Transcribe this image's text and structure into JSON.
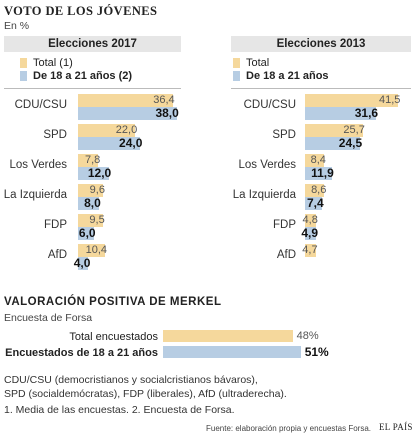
{
  "header": {
    "title": "VOTO DE LOS JÓVENES",
    "unit": "En %"
  },
  "colors": {
    "total": "#f5d89c",
    "young": "#b7cde3"
  },
  "chart_data": [
    {
      "type": "bar",
      "title": "Elecciones 2017",
      "legend": {
        "total": "Total (1)",
        "young": "De 18 a 21 años (2)"
      },
      "categories": [
        "CDU/CSU",
        "SPD",
        "Los Verdes",
        "La Izquierda",
        "FDP",
        "AfD"
      ],
      "series": [
        {
          "name": "Total (1)",
          "values": [
            36.4,
            22.0,
            7.8,
            9.6,
            9.5,
            10.4
          ],
          "labels": [
            "36,4",
            "22,0",
            "7,8",
            "9,6",
            "9,5",
            "10,4"
          ]
        },
        {
          "name": "De 18 a 21 años (2)",
          "values": [
            38.0,
            24.0,
            12.0,
            8.0,
            6.0,
            4.0
          ],
          "labels": [
            "38,0",
            "24,0",
            "12,0",
            "8,0",
            "6,0",
            "4,0"
          ]
        }
      ]
    },
    {
      "type": "bar",
      "title": "Elecciones 2013",
      "legend": {
        "total": "Total",
        "young": "De 18 a 21 años"
      },
      "categories": [
        "CDU/CSU",
        "SPD",
        "Los Verdes",
        "La Izquierda",
        "FDP",
        "AfD"
      ],
      "series": [
        {
          "name": "Total",
          "values": [
            41.5,
            25.7,
            8.4,
            8.6,
            4.8,
            4.7
          ],
          "labels": [
            "41,5",
            "25,7",
            "8,4",
            "8,6",
            "4,8",
            "4,7"
          ]
        },
        {
          "name": "De 18 a 21 años",
          "values": [
            31.6,
            24.5,
            11.9,
            7.4,
            4.9,
            null
          ],
          "labels": [
            "31,6",
            "24,5",
            "11,9",
            "7,4",
            "4,9",
            ""
          ]
        }
      ]
    },
    {
      "type": "bar",
      "title": "VALORACIÓN POSITIVA DE MERKEL",
      "subtitle": "Encuesta de Forsa",
      "categories": [
        "Total encuestados",
        "Encuestados de 18 a 21 años"
      ],
      "values": [
        48,
        51
      ],
      "labels": [
        "48%",
        "51%"
      ]
    }
  ],
  "footer": {
    "note1": "CDU/CSU (democristianos y socialcristianos bávaros),",
    "note2": "SPD (socialdemócratas), FDP (liberales), AfD (ultraderecha).",
    "note3": "1. Media de las encuestas.  2. Encuesta de Forsa.",
    "source": "Fuente: elaboración propia y encuestas Forsa.",
    "brand": "EL PAÍS"
  }
}
